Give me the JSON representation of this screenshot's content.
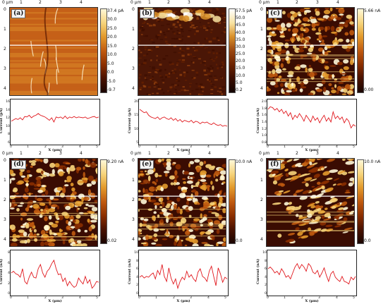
{
  "top_axis_ticks": [
    "0 µm",
    "1",
    "2",
    "3",
    "4"
  ],
  "left_axis_ticks": [
    "0",
    "1",
    "2",
    "3",
    "4"
  ],
  "profile_x_ticks": [
    "0",
    "1",
    "2",
    "3",
    "4",
    "5"
  ],
  "x_label": "X (µm)",
  "y_label": "Current",
  "panels": [
    {
      "badge": "(a)",
      "cbar_labels": [
        "37.4 pA",
        "30.0",
        "25.0",
        "20.0",
        "15.0",
        "10.0",
        "5.0",
        "0.0",
        "-5.0",
        "-9.7"
      ],
      "y_label": "Current (pA)",
      "y_ticks": [
        "16",
        "14",
        "12",
        "10",
        "8",
        "6"
      ],
      "palette": "afm_orange",
      "texture": "smooth",
      "profile_values": [
        0.52,
        0.55,
        0.58,
        0.56,
        0.6,
        0.55,
        0.63,
        0.62,
        0.66,
        0.6,
        0.64,
        0.66,
        0.7,
        0.66,
        0.64,
        0.62,
        0.58,
        0.54,
        0.6,
        0.5,
        0.62,
        0.6,
        0.62,
        0.58,
        0.64,
        0.58,
        0.62,
        0.6,
        0.63,
        0.6,
        0.62,
        0.61,
        0.6,
        0.62,
        0.58,
        0.6,
        0.62,
        0.63,
        0.6,
        0.62
      ]
    },
    {
      "badge": "(b)",
      "cbar_labels": [
        "57.5 pA",
        "50.0",
        "45.0",
        "40.0",
        "35.0",
        "30.0",
        "25.0",
        "20.0",
        "15.0",
        "10.0",
        "5.0",
        "0.2"
      ],
      "y_label": "Current (pA)",
      "y_ticks": [
        "20",
        "15",
        "10",
        "5"
      ],
      "palette": "afm_dark",
      "texture": "noisy_dark",
      "profile_values": [
        0.8,
        0.76,
        0.72,
        0.74,
        0.66,
        0.62,
        0.6,
        0.58,
        0.62,
        0.56,
        0.6,
        0.62,
        0.58,
        0.56,
        0.6,
        0.54,
        0.58,
        0.52,
        0.56,
        0.5,
        0.54,
        0.52,
        0.5,
        0.54,
        0.48,
        0.52,
        0.5,
        0.46,
        0.5,
        0.48,
        0.5,
        0.46,
        0.44,
        0.48,
        0.44,
        0.42,
        0.44,
        0.4,
        0.42,
        0.4
      ]
    },
    {
      "badge": "(c)",
      "cbar_labels": [
        "5.66 nA",
        "0.00"
      ],
      "y_label": "Current (nA)",
      "y_ticks": [
        "2.0",
        "1.8",
        "1.6",
        "1.4",
        "1.2",
        "1.0",
        "0.8"
      ],
      "palette": "afm_orange",
      "texture": "granular",
      "profile_values": [
        0.8,
        0.86,
        0.84,
        0.78,
        0.82,
        0.74,
        0.8,
        0.7,
        0.76,
        0.64,
        0.72,
        0.56,
        0.66,
        0.6,
        0.7,
        0.62,
        0.52,
        0.66,
        0.58,
        0.5,
        0.64,
        0.54,
        0.6,
        0.48,
        0.58,
        0.66,
        0.52,
        0.6,
        0.5,
        0.74,
        0.58,
        0.64,
        0.56,
        0.62,
        0.48,
        0.58,
        0.52,
        0.36,
        0.44,
        0.4
      ]
    },
    {
      "badge": "(d)",
      "cbar_labels": [
        "9.20 nA",
        "0.02"
      ],
      "y_label": "Current (nA)",
      "y_ticks": [
        "8",
        "6",
        "4",
        "2",
        "0"
      ],
      "palette": "afm_orange",
      "texture": "granular",
      "profile_values": [
        0.5,
        0.54,
        0.48,
        0.46,
        0.4,
        0.6,
        0.3,
        0.24,
        0.4,
        0.52,
        0.4,
        0.38,
        0.6,
        0.7,
        0.5,
        0.4,
        0.54,
        0.6,
        0.72,
        0.8,
        0.6,
        0.46,
        0.48,
        0.3,
        0.38,
        0.2,
        0.3,
        0.22,
        0.16,
        0.2,
        0.38,
        0.3,
        0.24,
        0.42,
        0.26,
        0.34,
        0.14,
        0.2,
        0.3,
        0.28
      ]
    },
    {
      "badge": "(e)",
      "cbar_labels": [
        "10.0 nA",
        "0.0"
      ],
      "y_label": "Current (nA)",
      "y_ticks": [
        "10",
        "8",
        "6",
        "4",
        "2",
        "0"
      ],
      "palette": "afm_orange",
      "texture": "granular",
      "profile_values": [
        0.4,
        0.44,
        0.38,
        0.42,
        0.4,
        0.46,
        0.5,
        0.36,
        0.56,
        0.46,
        0.7,
        0.42,
        0.3,
        0.62,
        0.38,
        0.24,
        0.36,
        0.14,
        0.3,
        0.4,
        0.34,
        0.54,
        0.4,
        0.46,
        0.36,
        0.3,
        0.52,
        0.6,
        0.42,
        0.38,
        0.3,
        0.54,
        0.66,
        0.42,
        0.2,
        0.62,
        0.48,
        0.28,
        0.4,
        0.36
      ]
    },
    {
      "badge": "(f)",
      "cbar_labels": [
        "10.0 nA",
        "0.0"
      ],
      "y_label": "Current (nA)",
      "y_ticks": [
        "10",
        "8",
        "6",
        "4",
        "2",
        "0"
      ],
      "palette": "afm_orange",
      "texture": "streaky",
      "profile_values": [
        0.6,
        0.64,
        0.58,
        0.5,
        0.54,
        0.46,
        0.6,
        0.52,
        0.4,
        0.44,
        0.36,
        0.5,
        0.64,
        0.72,
        0.6,
        0.7,
        0.64,
        0.54,
        0.72,
        0.66,
        0.52,
        0.48,
        0.56,
        0.4,
        0.5,
        0.62,
        0.44,
        0.3,
        0.48,
        0.54,
        0.4,
        0.34,
        0.3,
        0.42,
        0.3,
        0.28,
        0.24,
        0.4,
        0.34,
        0.42
      ]
    }
  ]
}
